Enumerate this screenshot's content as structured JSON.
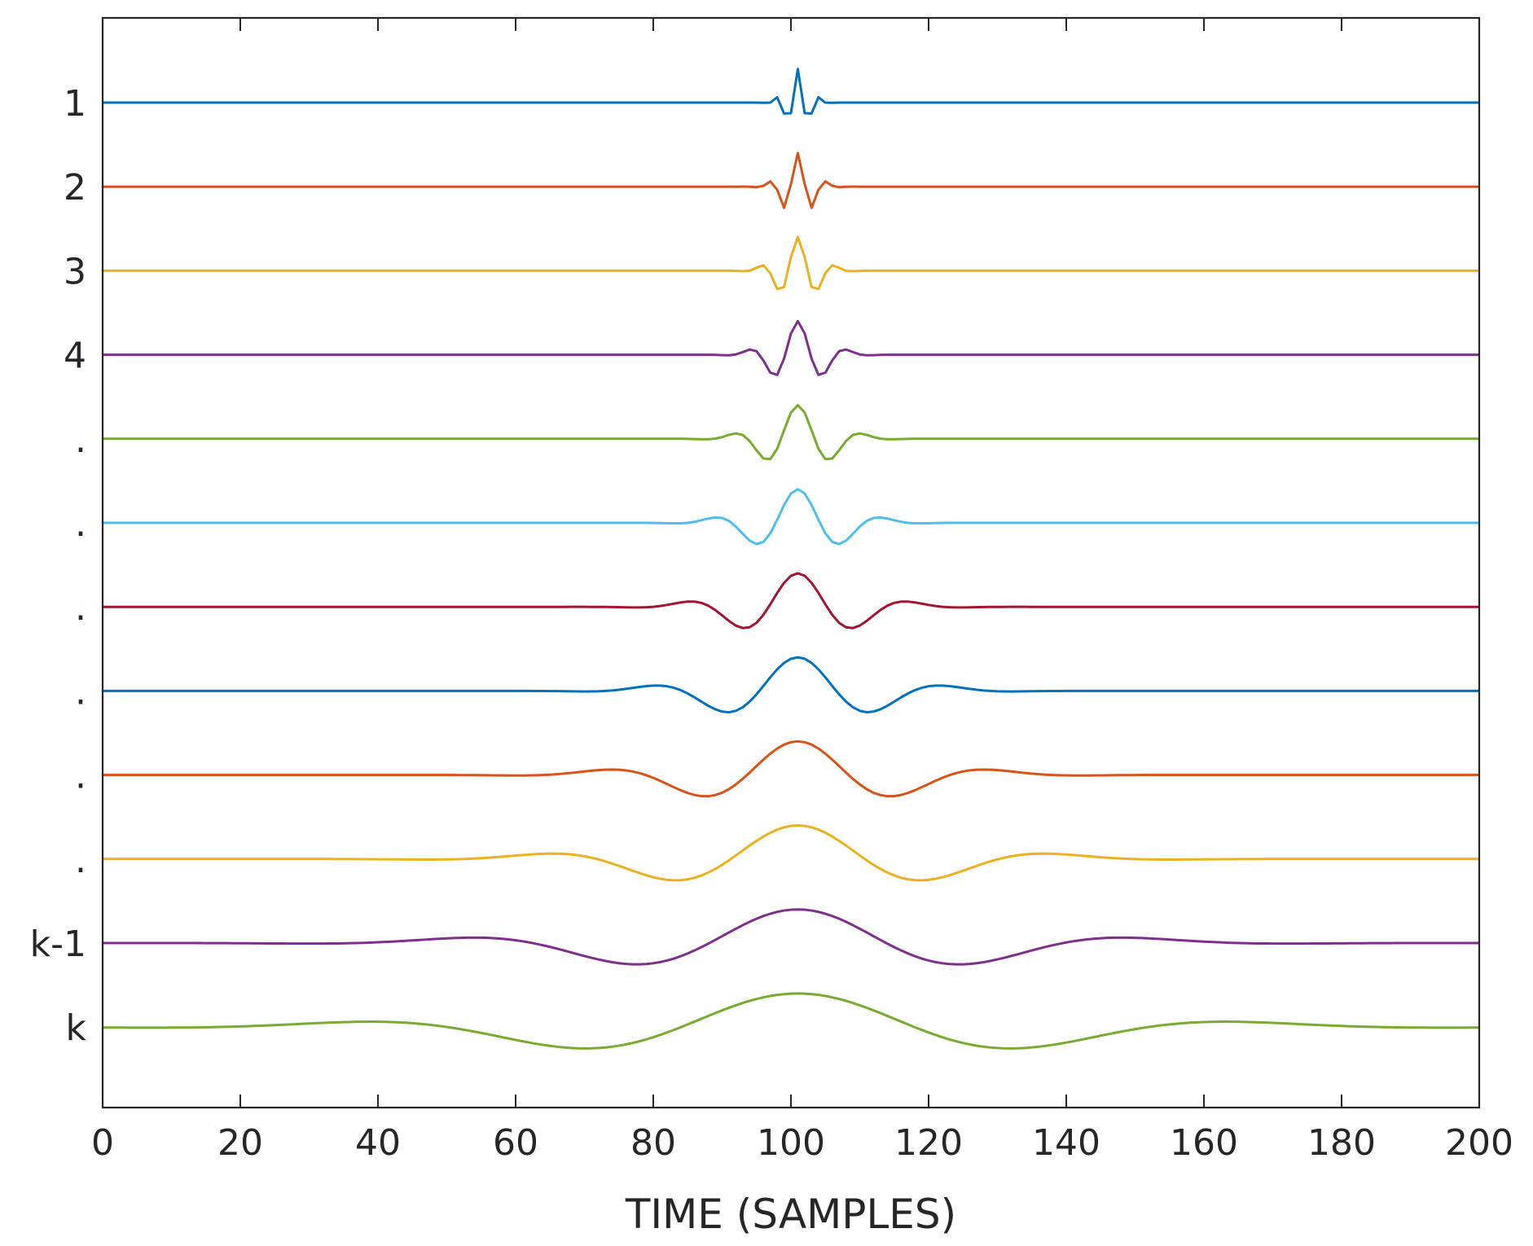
{
  "chart_data": {
    "type": "line",
    "title": "",
    "xlabel": "TIME (SAMPLES)",
    "ylabel": "",
    "xlim": [
      0,
      200
    ],
    "x_ticks": [
      0,
      20,
      40,
      60,
      80,
      100,
      120,
      140,
      160,
      180,
      200
    ],
    "y_tick_labels": [
      "1",
      "2",
      "3",
      "4",
      ".",
      ".",
      ".",
      ".",
      ".",
      ".",
      "k-1",
      "k"
    ],
    "grid": false,
    "legend": "none",
    "waveform": {
      "samples": 201,
      "center": 101,
      "center_offset_step": 0.1,
      "amplitude": 0.4,
      "first_scale": 1.0,
      "scale_ratio": 1.32,
      "cycles_per_envelope": 1.6
    },
    "series": [
      {
        "color": "#0072BD"
      },
      {
        "color": "#D95319"
      },
      {
        "color": "#EDB120"
      },
      {
        "color": "#7E2F8E"
      },
      {
        "color": "#77AC30"
      },
      {
        "color": "#4DBEEE"
      },
      {
        "color": "#A2142F"
      },
      {
        "color": "#0072BD"
      },
      {
        "color": "#D95319"
      },
      {
        "color": "#EDB120"
      },
      {
        "color": "#7E2F8E"
      },
      {
        "color": "#77AC30"
      }
    ]
  }
}
